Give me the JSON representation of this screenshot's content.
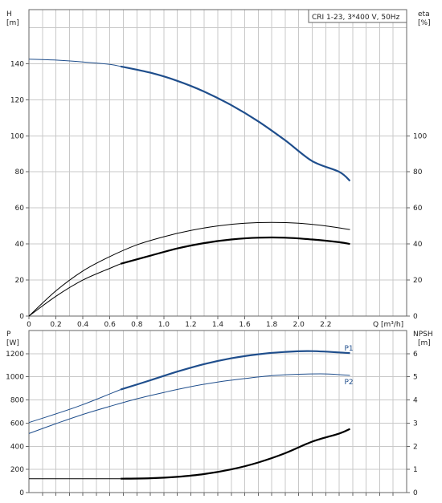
{
  "chart_data": [
    {
      "type": "line",
      "title": "CRI 1-23, 3*400 V, 50Hz",
      "left_axis": {
        "label_line1": "H",
        "label_line2": "[m]",
        "ylim": [
          0,
          170
        ],
        "ticks": [
          0,
          20,
          40,
          60,
          80,
          100,
          120,
          140
        ]
      },
      "right_axis": {
        "label_line1": "eta",
        "label_line2": "[%]",
        "ylim": [
          0,
          170
        ],
        "ticks": [
          0,
          20,
          40,
          60,
          80,
          100
        ]
      },
      "x_axis": {
        "label": "Q [m³/h]",
        "xlim": [
          0,
          2.8
        ],
        "ticks": [
          "0",
          "0.2",
          "0.4",
          "0.6",
          "0.8",
          "1.0",
          "1.2",
          "1.4",
          "1.6",
          "1.8",
          "2.0",
          "2.2"
        ],
        "tick_values": [
          0,
          0.2,
          0.4,
          0.6,
          0.8,
          1.0,
          1.2,
          1.4,
          1.6,
          1.8,
          2.0,
          2.2
        ]
      },
      "series": [
        {
          "color": "#1f4e8c",
          "axis": "left",
          "x_thin": [
            0,
            0.2,
            0.4,
            0.6,
            0.68
          ],
          "y_thin": [
            142.5,
            142.0,
            141.0,
            139.6,
            138.5
          ],
          "x": [
            0.68,
            0.9,
            1.1,
            1.3,
            1.5,
            1.7,
            1.9,
            2.1,
            2.3,
            2.38
          ],
          "y": [
            138.5,
            135,
            130.5,
            124.5,
            117,
            108,
            97.5,
            86,
            80,
            75
          ]
        },
        {
          "color": "#000000",
          "axis": "right",
          "thin_only": true,
          "x": [
            0,
            0.2,
            0.4,
            0.6,
            0.8,
            1.0,
            1.2,
            1.4,
            1.6,
            1.8,
            2.0,
            2.2,
            2.38
          ],
          "y": [
            0,
            14,
            25,
            33,
            39.5,
            44,
            47.5,
            50,
            51.5,
            52,
            51.5,
            50,
            48
          ]
        },
        {
          "color": "#000000",
          "axis": "right",
          "x_thin": [
            0,
            0.2,
            0.4,
            0.6,
            0.68
          ],
          "y_thin": [
            0,
            11,
            20,
            26.5,
            29
          ],
          "x": [
            0.68,
            0.9,
            1.1,
            1.3,
            1.5,
            1.7,
            1.9,
            2.1,
            2.3,
            2.38
          ],
          "y": [
            29,
            33.5,
            37.5,
            40.5,
            42.5,
            43.5,
            43.5,
            42.5,
            41,
            40
          ]
        }
      ]
    },
    {
      "type": "line",
      "left_axis": {
        "label_line1": "P",
        "label_line2": "[W]",
        "ylim": [
          0,
          1400
        ],
        "ticks": [
          0,
          200,
          400,
          600,
          800,
          1000,
          1200
        ]
      },
      "right_axis": {
        "label_line1": "NPSH",
        "label_line2": "[m]",
        "ylim": [
          0,
          7
        ],
        "ticks": [
          0,
          1,
          2,
          3,
          4,
          5,
          6
        ]
      },
      "x_axis": {
        "xlim": [
          0,
          2.8
        ]
      },
      "series": [
        {
          "name": "P1",
          "color": "#1f4e8c",
          "axis": "left",
          "x_thin": [
            0,
            0.2,
            0.4,
            0.68
          ],
          "y_thin": [
            605,
            680,
            760,
            890
          ],
          "x": [
            0.68,
            0.9,
            1.1,
            1.3,
            1.5,
            1.7,
            1.9,
            2.1,
            2.38
          ],
          "y": [
            890,
            970,
            1045,
            1110,
            1160,
            1195,
            1215,
            1222,
            1205
          ]
        },
        {
          "name": "P2",
          "color": "#1f4e8c",
          "axis": "left",
          "thin_only": true,
          "x": [
            0,
            0.2,
            0.4,
            0.6,
            0.8,
            1.0,
            1.2,
            1.4,
            1.6,
            1.8,
            2.0,
            2.2,
            2.38
          ],
          "y": [
            510,
            595,
            675,
            745,
            810,
            865,
            915,
            955,
            985,
            1010,
            1022,
            1025,
            1012
          ]
        },
        {
          "color": "#000000",
          "axis": "right",
          "x_thin": [
            0,
            0.2,
            0.4,
            0.68
          ],
          "y_thin": [
            0.6,
            0.6,
            0.6,
            0.6
          ],
          "x": [
            0.68,
            0.9,
            1.1,
            1.3,
            1.5,
            1.7,
            1.9,
            2.1,
            2.3,
            2.38
          ],
          "y": [
            0.6,
            0.62,
            0.68,
            0.8,
            1.0,
            1.3,
            1.7,
            2.2,
            2.55,
            2.75
          ]
        }
      ]
    }
  ]
}
